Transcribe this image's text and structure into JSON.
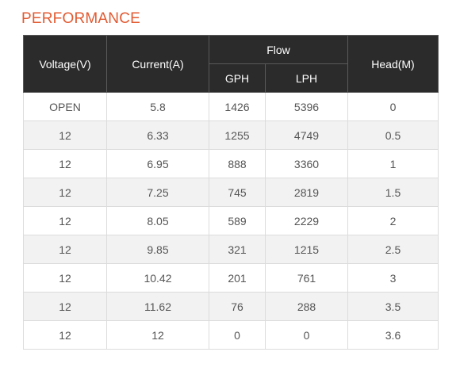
{
  "section_title": "PERFORMANCE",
  "table": {
    "headers": {
      "voltage": "Voltage(V)",
      "current": "Current(A)",
      "flow": "Flow",
      "gph": "GPH",
      "lph": "LPH",
      "head": "Head(M)"
    },
    "rows": [
      {
        "voltage": "OPEN",
        "current": "5.8",
        "gph": "1426",
        "lph": "5396",
        "head": "0"
      },
      {
        "voltage": "12",
        "current": "6.33",
        "gph": "1255",
        "lph": "4749",
        "head": "0.5"
      },
      {
        "voltage": "12",
        "current": "6.95",
        "gph": "888",
        "lph": "3360",
        "head": "1"
      },
      {
        "voltage": "12",
        "current": "7.25",
        "gph": "745",
        "lph": "2819",
        "head": "1.5"
      },
      {
        "voltage": "12",
        "current": "8.05",
        "gph": "589",
        "lph": "2229",
        "head": "2"
      },
      {
        "voltage": "12",
        "current": "9.85",
        "gph": "321",
        "lph": "1215",
        "head": "2.5"
      },
      {
        "voltage": "12",
        "current": "10.42",
        "gph": "201",
        "lph": "761",
        "head": "3"
      },
      {
        "voltage": "12",
        "current": "11.62",
        "gph": "76",
        "lph": "288",
        "head": "3.5"
      },
      {
        "voltage": "12",
        "current": "12",
        "gph": "0",
        "lph": "0",
        "head": "3.6"
      }
    ]
  },
  "colors": {
    "title": "#e25a32",
    "header_bg": "#2b2b2b",
    "stripe": "#f2f2f2"
  }
}
